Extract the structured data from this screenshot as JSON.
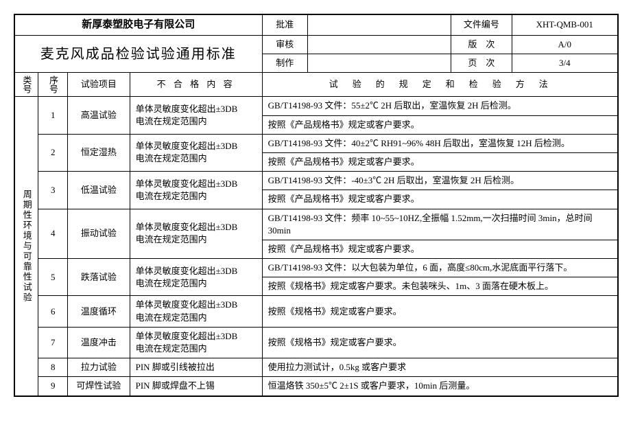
{
  "header": {
    "company": "新厚泰塑胶电子有限公司",
    "title": "麦克风成品检验试验通用标准",
    "approve_label": "批准",
    "approve_val": "",
    "review_label": "审核",
    "review_val": "",
    "make_label": "制作",
    "make_val": "",
    "docno_label": "文件编号",
    "docno_val": "XHT-QMB-001",
    "ver_label": "版　次",
    "ver_val": "A/0",
    "page_label": "页　次",
    "page_val": "3/4"
  },
  "cols": {
    "cat": "类号",
    "seq": "序号",
    "item": "试验项目",
    "fail": "不 合 格 内 容",
    "method": "试　验　的　规　定　和　检　验　方　法"
  },
  "category": "周期性环境与可靠性试验",
  "rows": [
    {
      "n": "1",
      "item": "高温试验",
      "fail": "单体灵敏度变化超出±3DB\n电流在规定范围内",
      "m1": "GB/T14198-93 文件：55±2℃ 2H 后取出，室温恢复 2H 后检测。",
      "m2": "按照《产品规格书》规定或客户要求。"
    },
    {
      "n": "2",
      "item": "恒定湿热",
      "fail": "单体灵敏度变化超出±3DB\n电流在规定范围内",
      "m1": "GB/T14198-93 文件：40±2℃ RH91~96% 48H 后取出，室温恢复 12H 后检测。",
      "m2": "按照《产品规格书》规定或客户要求。"
    },
    {
      "n": "3",
      "item": "低温试验",
      "fail": "单体灵敏度变化超出±3DB\n电流在规定范围内",
      "m1": "GB/T14198-93 文件：-40±3℃ 2H 后取出，室温恢复 2H 后检测。",
      "m2": "按照《产品规格书》规定或客户要求。"
    },
    {
      "n": "4",
      "item": "振动试验",
      "fail": "单体灵敏度变化超出±3DB\n电流在规定范围内",
      "m1": "GB/T14198-93 文件：频率 10~55~10HZ,全振幅 1.52mm,一次扫描时间 3min，总时间 30min",
      "m2": "按照《产品规格书》规定或客户要求。"
    },
    {
      "n": "5",
      "item": "跌落试验",
      "fail": "单体灵敏度变化超出±3DB\n电流在规定范围内",
      "m1": "GB/T14198-93 文件：以大包装为单位，6 面，高度≤80cm,水泥底面平行落下。",
      "m2": "按照《规格书》规定或客户要求。未包装咪头、1m、3 面落在硬木板上。"
    },
    {
      "n": "6",
      "item": "温度循环",
      "fail": "单体灵敏度变化超出±3DB\n电流在规定范围内",
      "m1": "按照《规格书》规定或客户要求。"
    },
    {
      "n": "7",
      "item": "温度冲击",
      "fail": "单体灵敏度变化超出±3DB\n电流在规定范围内",
      "m1": "按照《规格书》规定或客户要求。"
    },
    {
      "n": "8",
      "item": "拉力试验",
      "fail": "PIN 脚或引线被拉出",
      "m1": "使用拉力测试计，0.5kg 或客户要求"
    },
    {
      "n": "9",
      "item": "可焊性试验",
      "fail": "PIN 脚或焊盘不上锡",
      "m1": "恒温烙铁 350±5℃ 2±1S 或客户要求，10min 后测量。"
    }
  ]
}
